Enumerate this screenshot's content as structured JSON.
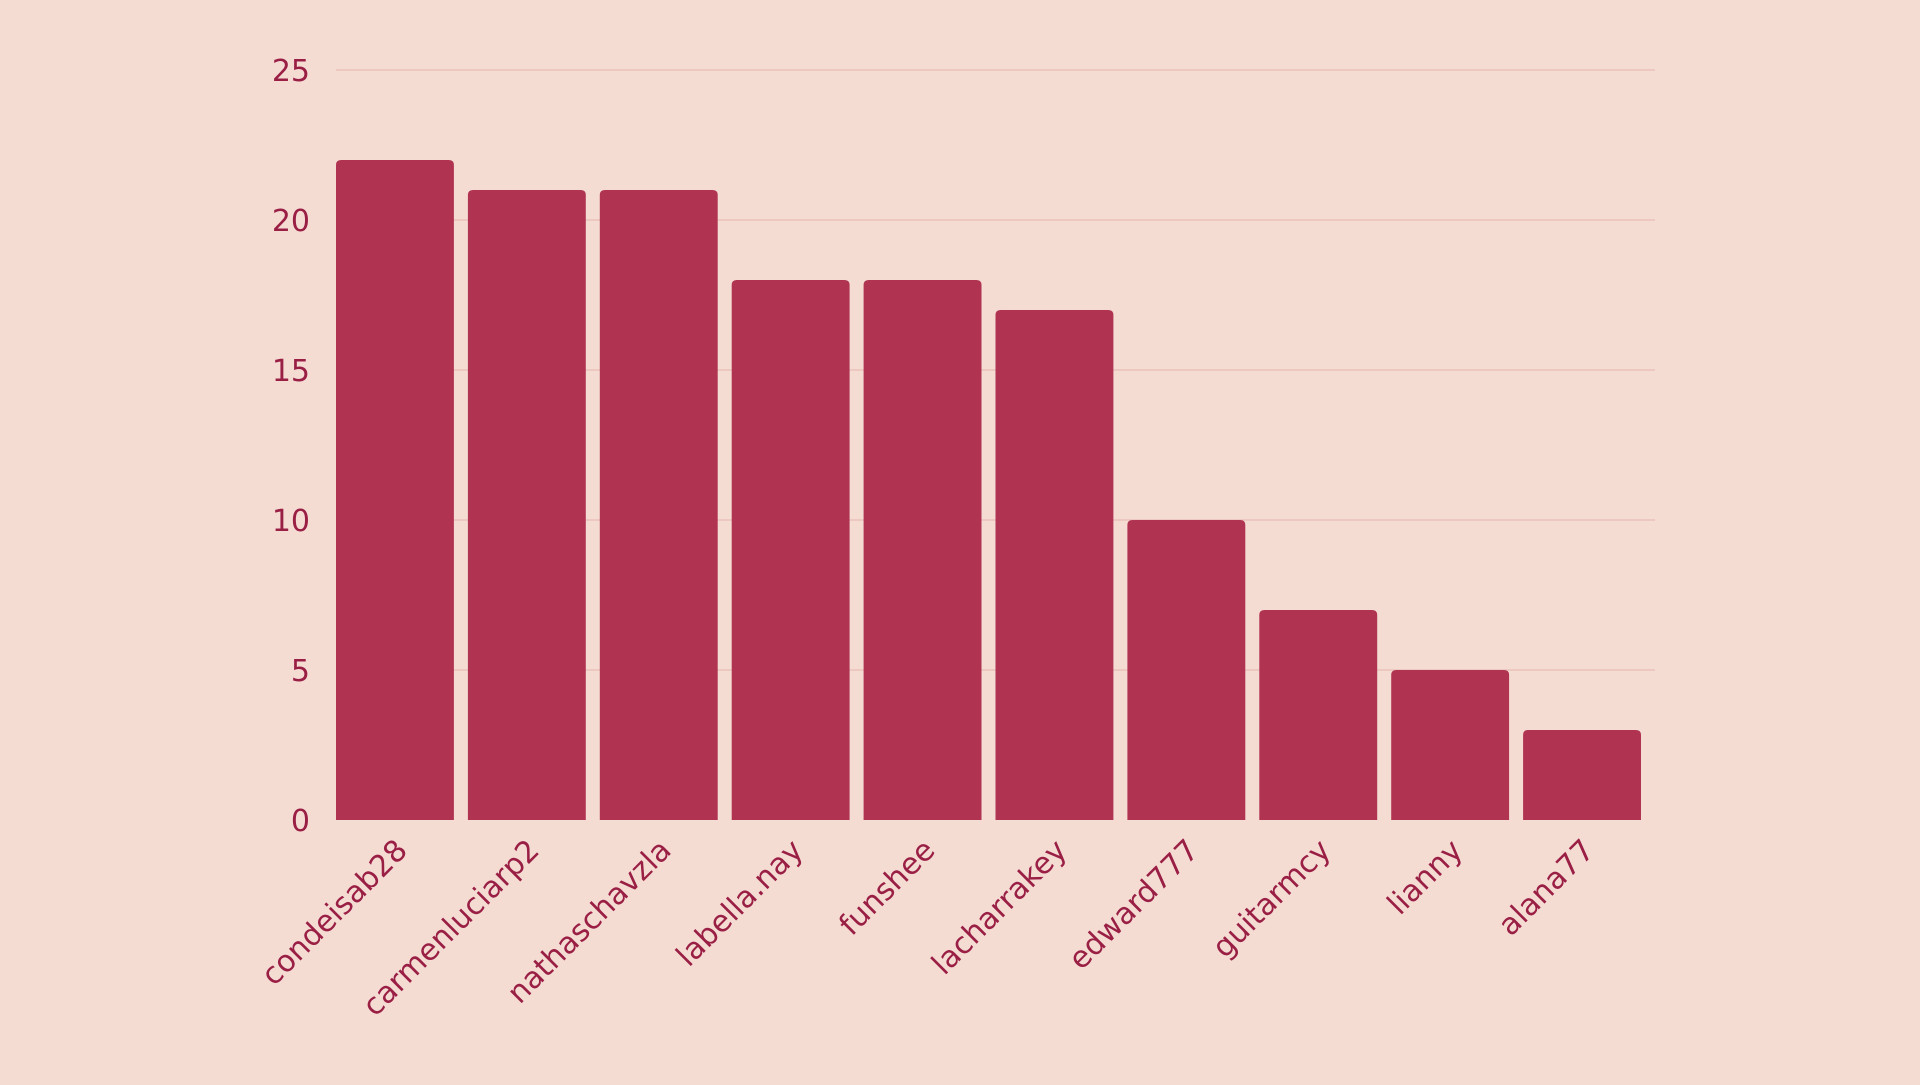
{
  "chart_data": {
    "type": "bar",
    "title": "",
    "xlabel": "",
    "ylabel": "",
    "categories": [
      "condeisab28",
      "carmenluciarp2",
      "nathaschavzla",
      "labella.nay",
      "funshee",
      "lacharrakey",
      "edward777",
      "guitarmcy",
      "lianny",
      "alana77"
    ],
    "values": [
      22,
      21,
      21,
      18,
      18,
      17,
      10,
      7,
      5,
      3
    ],
    "ylim": [
      0,
      25
    ],
    "yticks": [
      "0",
      "5",
      "10",
      "15",
      "20",
      "25"
    ],
    "grid": true,
    "legend": "none",
    "colors": {
      "background": "#f5dcd3",
      "bar": "#b03452",
      "text": "#9a1f45",
      "grid": "#e3b5ae"
    }
  }
}
